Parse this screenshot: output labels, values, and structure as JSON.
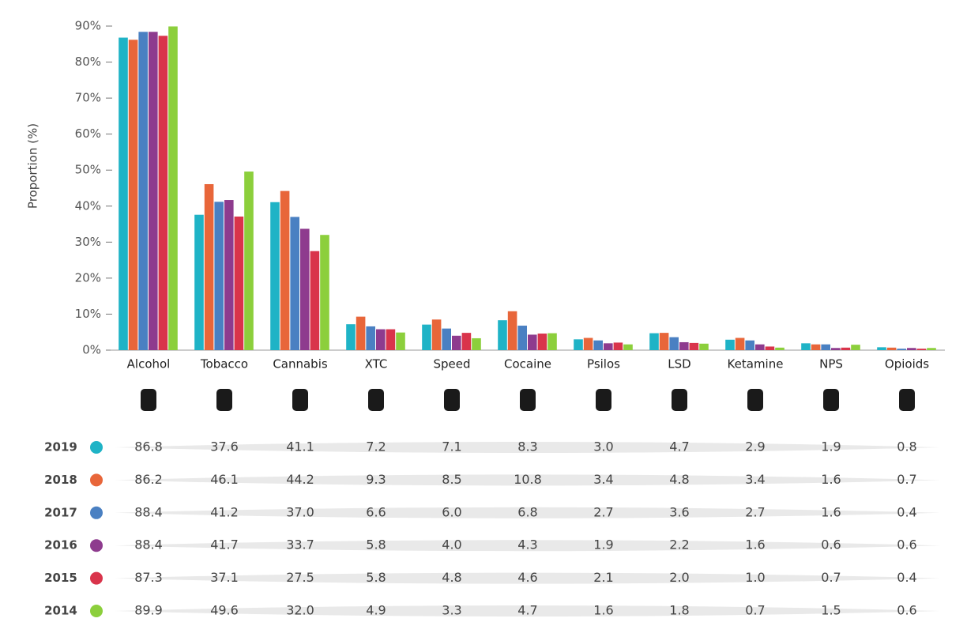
{
  "chart_data": {
    "type": "bar",
    "y_label": "Proportion (%)",
    "categories": [
      "Alcohol",
      "Tobacco",
      "Cannabis",
      "XTC",
      "Speed",
      "Cocaine",
      "Psilos",
      "LSD",
      "Ketamine",
      "NPS",
      "Opioids"
    ],
    "ylim": [
      0,
      90
    ],
    "yticks": [
      {
        "value": 0,
        "label": "0%"
      },
      {
        "value": 10,
        "label": "10%"
      },
      {
        "value": 20,
        "label": "20%"
      },
      {
        "value": 30,
        "label": "30%"
      },
      {
        "value": 40,
        "label": "40%"
      },
      {
        "value": 50,
        "label": "50%"
      },
      {
        "value": 60,
        "label": "60%"
      },
      {
        "value": 70,
        "label": "70%"
      },
      {
        "value": 80,
        "label": "80%"
      },
      {
        "value": 90,
        "label": "90%"
      }
    ],
    "series": [
      {
        "name": "2019",
        "color": "#1fb3c6",
        "values": [
          86.8,
          37.6,
          41.1,
          7.2,
          7.1,
          8.3,
          3.0,
          4.7,
          2.9,
          1.9,
          0.8
        ],
        "value_labels": [
          "86.8",
          "37.6",
          "41.1",
          "7.2",
          "7.1",
          "8.3",
          "3.0",
          "4.7",
          "2.9",
          "1.9",
          "0.8"
        ]
      },
      {
        "name": "2018",
        "color": "#e8663a",
        "values": [
          86.2,
          46.1,
          44.2,
          9.3,
          8.5,
          10.8,
          3.4,
          4.8,
          3.4,
          1.6,
          0.7
        ],
        "value_labels": [
          "86.2",
          "46.1",
          "44.2",
          "9.3",
          "8.5",
          "10.8",
          "3.4",
          "4.8",
          "3.4",
          "1.6",
          "0.7"
        ]
      },
      {
        "name": "2017",
        "color": "#4a80c2",
        "values": [
          88.4,
          41.2,
          37.0,
          6.6,
          6.0,
          6.8,
          2.7,
          3.6,
          2.7,
          1.6,
          0.4
        ],
        "value_labels": [
          "88.4",
          "41.2",
          "37.0",
          "6.6",
          "6.0",
          "6.8",
          "2.7",
          "3.6",
          "2.7",
          "1.6",
          "0.4"
        ]
      },
      {
        "name": "2016",
        "color": "#8e3b8e",
        "values": [
          88.4,
          41.7,
          33.7,
          5.8,
          4.0,
          4.3,
          1.9,
          2.2,
          1.6,
          0.6,
          0.6
        ],
        "value_labels": [
          "88.4",
          "41.7",
          "33.7",
          "5.8",
          "4.0",
          "4.3",
          "1.9",
          "2.2",
          "1.6",
          "0.6",
          "0.6"
        ]
      },
      {
        "name": "2015",
        "color": "#d9344b",
        "values": [
          87.3,
          37.1,
          27.5,
          5.8,
          4.8,
          4.6,
          2.1,
          2.0,
          1.0,
          0.7,
          0.4
        ],
        "value_labels": [
          "87.3",
          "37.1",
          "27.5",
          "5.8",
          "4.8",
          "4.6",
          "2.1",
          "2.0",
          "1.0",
          "0.7",
          "0.4"
        ]
      },
      {
        "name": "2014",
        "color": "#8ccf3c",
        "values": [
          89.9,
          49.6,
          32.0,
          4.9,
          3.3,
          4.7,
          1.6,
          1.8,
          0.7,
          1.5,
          0.6
        ],
        "value_labels": [
          "89.9",
          "49.6",
          "32.0",
          "4.9",
          "3.3",
          "4.7",
          "1.6",
          "1.8",
          "0.7",
          "1.5",
          "0.6"
        ]
      }
    ]
  }
}
